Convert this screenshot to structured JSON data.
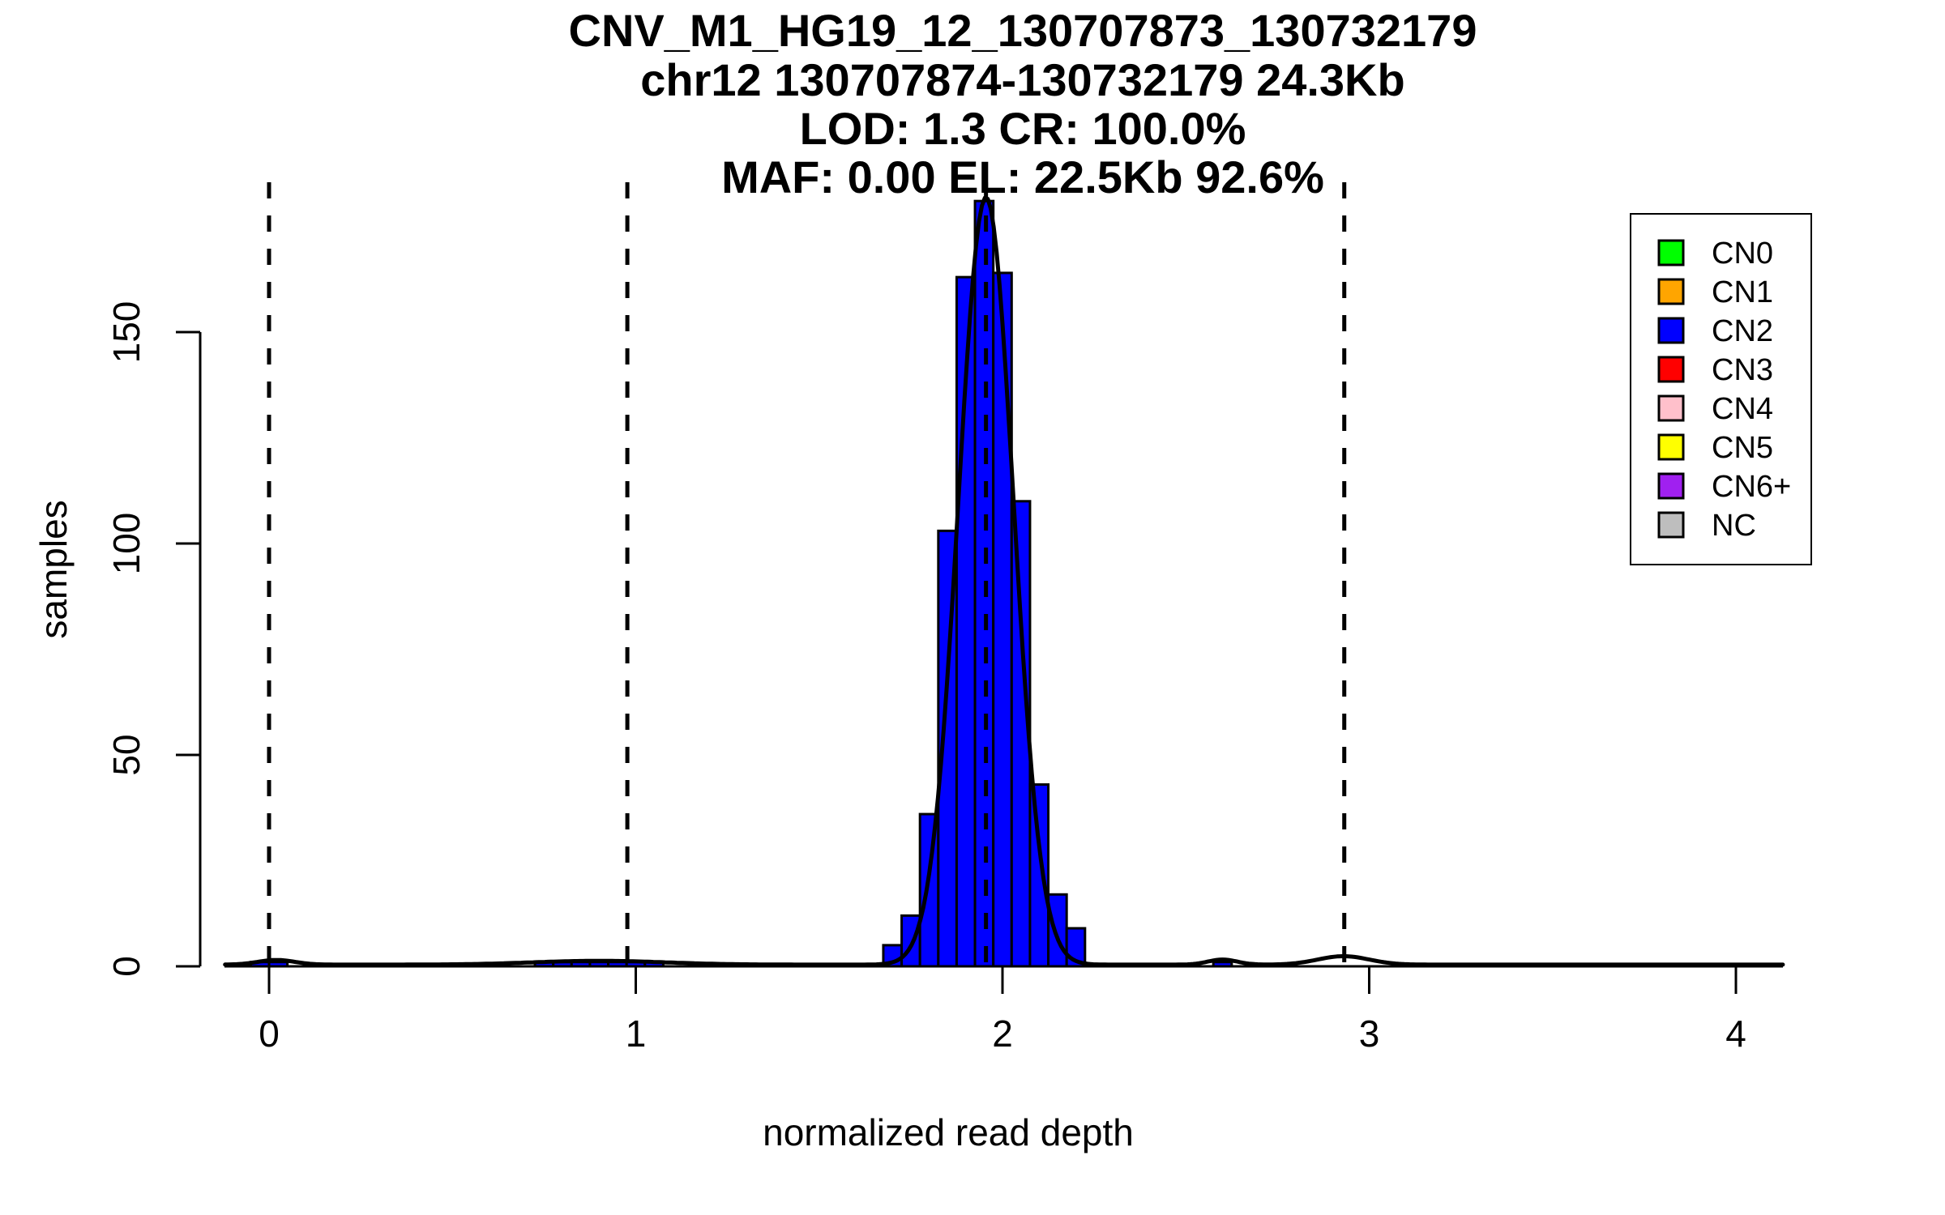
{
  "chart_data": {
    "type": "bar",
    "subtype": "histogram-with-density",
    "title_lines": [
      "CNV_M1_HG19_12_130707873_130732179",
      "chr12 130707874-130732179 24.3Kb",
      "LOD: 1.3 CR: 100.0%",
      "MAF: 0.00 EL: 22.5Kb 92.6%"
    ],
    "xlabel": "normalized read depth",
    "ylabel": "samples",
    "x_ticks": [
      0,
      1,
      2,
      3,
      4
    ],
    "y_ticks": [
      0,
      50,
      100,
      150
    ],
    "xlim": [
      -0.12,
      4.13
    ],
    "ylim": [
      0,
      186
    ],
    "grid": false,
    "bin_width": 0.05,
    "main_histogram": {
      "series_label": "CN2",
      "bin_starts": [
        1.675,
        1.725,
        1.775,
        1.825,
        1.875,
        1.925,
        1.975,
        2.025,
        2.075,
        2.125,
        2.175
      ],
      "counts": [
        5,
        12,
        36,
        103,
        163,
        181,
        164,
        110,
        43,
        17,
        9
      ]
    },
    "outlier_bins": {
      "bin_starts": [
        -0.05,
        0.0,
        0.725,
        0.775,
        0.825,
        0.875,
        0.925,
        0.975,
        1.025,
        2.575
      ],
      "counts": [
        1,
        1,
        1,
        1,
        1,
        1,
        1,
        1,
        1,
        1
      ]
    },
    "dashed_lines_x": [
      0,
      0.977,
      1.955,
      2.932
    ],
    "density_baseline": 0.4,
    "density_components": [
      {
        "mu": 1.955,
        "sigma": 0.075,
        "amp": 181.5
      },
      {
        "mu": 0.02,
        "sigma": 0.05,
        "amp": 1.1
      },
      {
        "mu": 0.9,
        "sigma": 0.18,
        "amp": 0.9
      },
      {
        "mu": 2.6,
        "sigma": 0.04,
        "amp": 1.2
      },
      {
        "mu": 2.93,
        "sigma": 0.07,
        "amp": 2.0
      }
    ],
    "legend": {
      "position": "top-right",
      "items": [
        {
          "label": "CN0",
          "color": "#00FF00"
        },
        {
          "label": "CN1",
          "color": "#FFA500"
        },
        {
          "label": "CN2",
          "color": "#0000FF"
        },
        {
          "label": "CN3",
          "color": "#FF0000"
        },
        {
          "label": "CN4",
          "color": "#FFC0CB"
        },
        {
          "label": "CN5",
          "color": "#FFFF00"
        },
        {
          "label": "CN6+",
          "color": "#A020F0"
        },
        {
          "label": "NC",
          "color": "#BEBEBE"
        }
      ]
    },
    "colors": {
      "bar_fill": "#0000FF",
      "bar_border": "#000000",
      "density_line": "#000000",
      "axis": "#000000",
      "background": "#FFFFFF"
    }
  }
}
